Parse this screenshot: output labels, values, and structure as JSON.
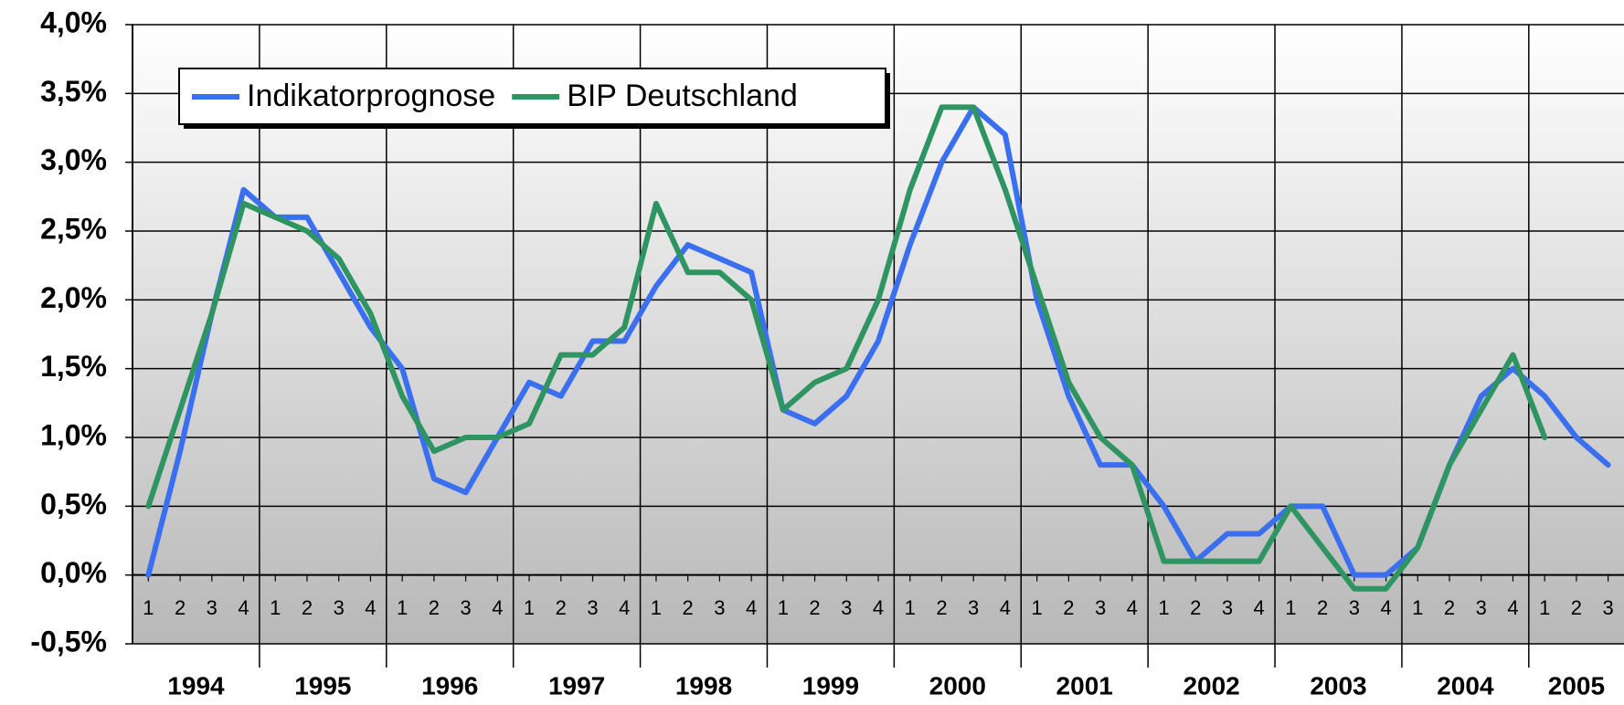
{
  "chart_data": {
    "type": "line",
    "categories": [
      "1",
      "2",
      "3",
      "4",
      "1",
      "2",
      "3",
      "4",
      "1",
      "2",
      "3",
      "4",
      "1",
      "2",
      "3",
      "4",
      "1",
      "2",
      "3",
      "4",
      "1",
      "2",
      "3",
      "4",
      "1",
      "2",
      "3",
      "4",
      "1",
      "2",
      "3",
      "4",
      "1",
      "2",
      "3",
      "4",
      "1",
      "2",
      "3",
      "4",
      "1",
      "2",
      "3",
      "4",
      "1",
      "2",
      "3"
    ],
    "year_labels": [
      "1994",
      "1995",
      "1996",
      "1997",
      "1998",
      "1999",
      "2000",
      "2001",
      "2002",
      "2003",
      "2004",
      "2005"
    ],
    "series": [
      {
        "name": "Indikatorprognose",
        "color": "#3a6ff0",
        "values": [
          0.0,
          0.9,
          1.9,
          2.8,
          2.6,
          2.6,
          2.2,
          1.8,
          1.5,
          0.7,
          0.6,
          1.0,
          1.4,
          1.3,
          1.7,
          1.7,
          2.1,
          2.4,
          2.3,
          2.2,
          1.2,
          1.1,
          1.3,
          1.7,
          2.4,
          3.0,
          3.4,
          3.2,
          2.0,
          1.3,
          0.8,
          0.8,
          0.5,
          0.1,
          0.3,
          0.3,
          0.5,
          0.5,
          0.0,
          0.0,
          0.2,
          0.8,
          1.3,
          1.5,
          1.3,
          1.0,
          0.8
        ]
      },
      {
        "name": "BIP Deutschland",
        "color": "#2e9462",
        "values": [
          0.5,
          1.2,
          1.9,
          2.7,
          2.6,
          2.5,
          2.3,
          1.9,
          1.3,
          0.9,
          1.0,
          1.0,
          1.1,
          1.6,
          1.6,
          1.8,
          2.7,
          2.2,
          2.2,
          2.0,
          1.2,
          1.4,
          1.5,
          2.0,
          2.8,
          3.4,
          3.4,
          2.8,
          2.1,
          1.4,
          1.0,
          0.8,
          0.1,
          0.1,
          0.1,
          0.1,
          0.5,
          0.2,
          -0.1,
          -0.1,
          0.2,
          0.8,
          1.2,
          1.6,
          1.0,
          null,
          null
        ]
      }
    ],
    "ylim": [
      -0.5,
      4.0
    ],
    "yticks": [
      {
        "value": -0.5,
        "label": "-0,5%"
      },
      {
        "value": 0,
        "label": "0,0%"
      },
      {
        "value": 0.5,
        "label": "0,5%"
      },
      {
        "value": 1.0,
        "label": "1,0%"
      },
      {
        "value": 1.5,
        "label": "1,5%"
      },
      {
        "value": 2.0,
        "label": "2,0%"
      },
      {
        "value": 2.5,
        "label": "2,5%"
      },
      {
        "value": 3.0,
        "label": "3,0%"
      },
      {
        "value": 3.5,
        "label": "3,5%"
      },
      {
        "value": 4.0,
        "label": "4,0%"
      }
    ],
    "grid": true,
    "legend": "upper left"
  }
}
